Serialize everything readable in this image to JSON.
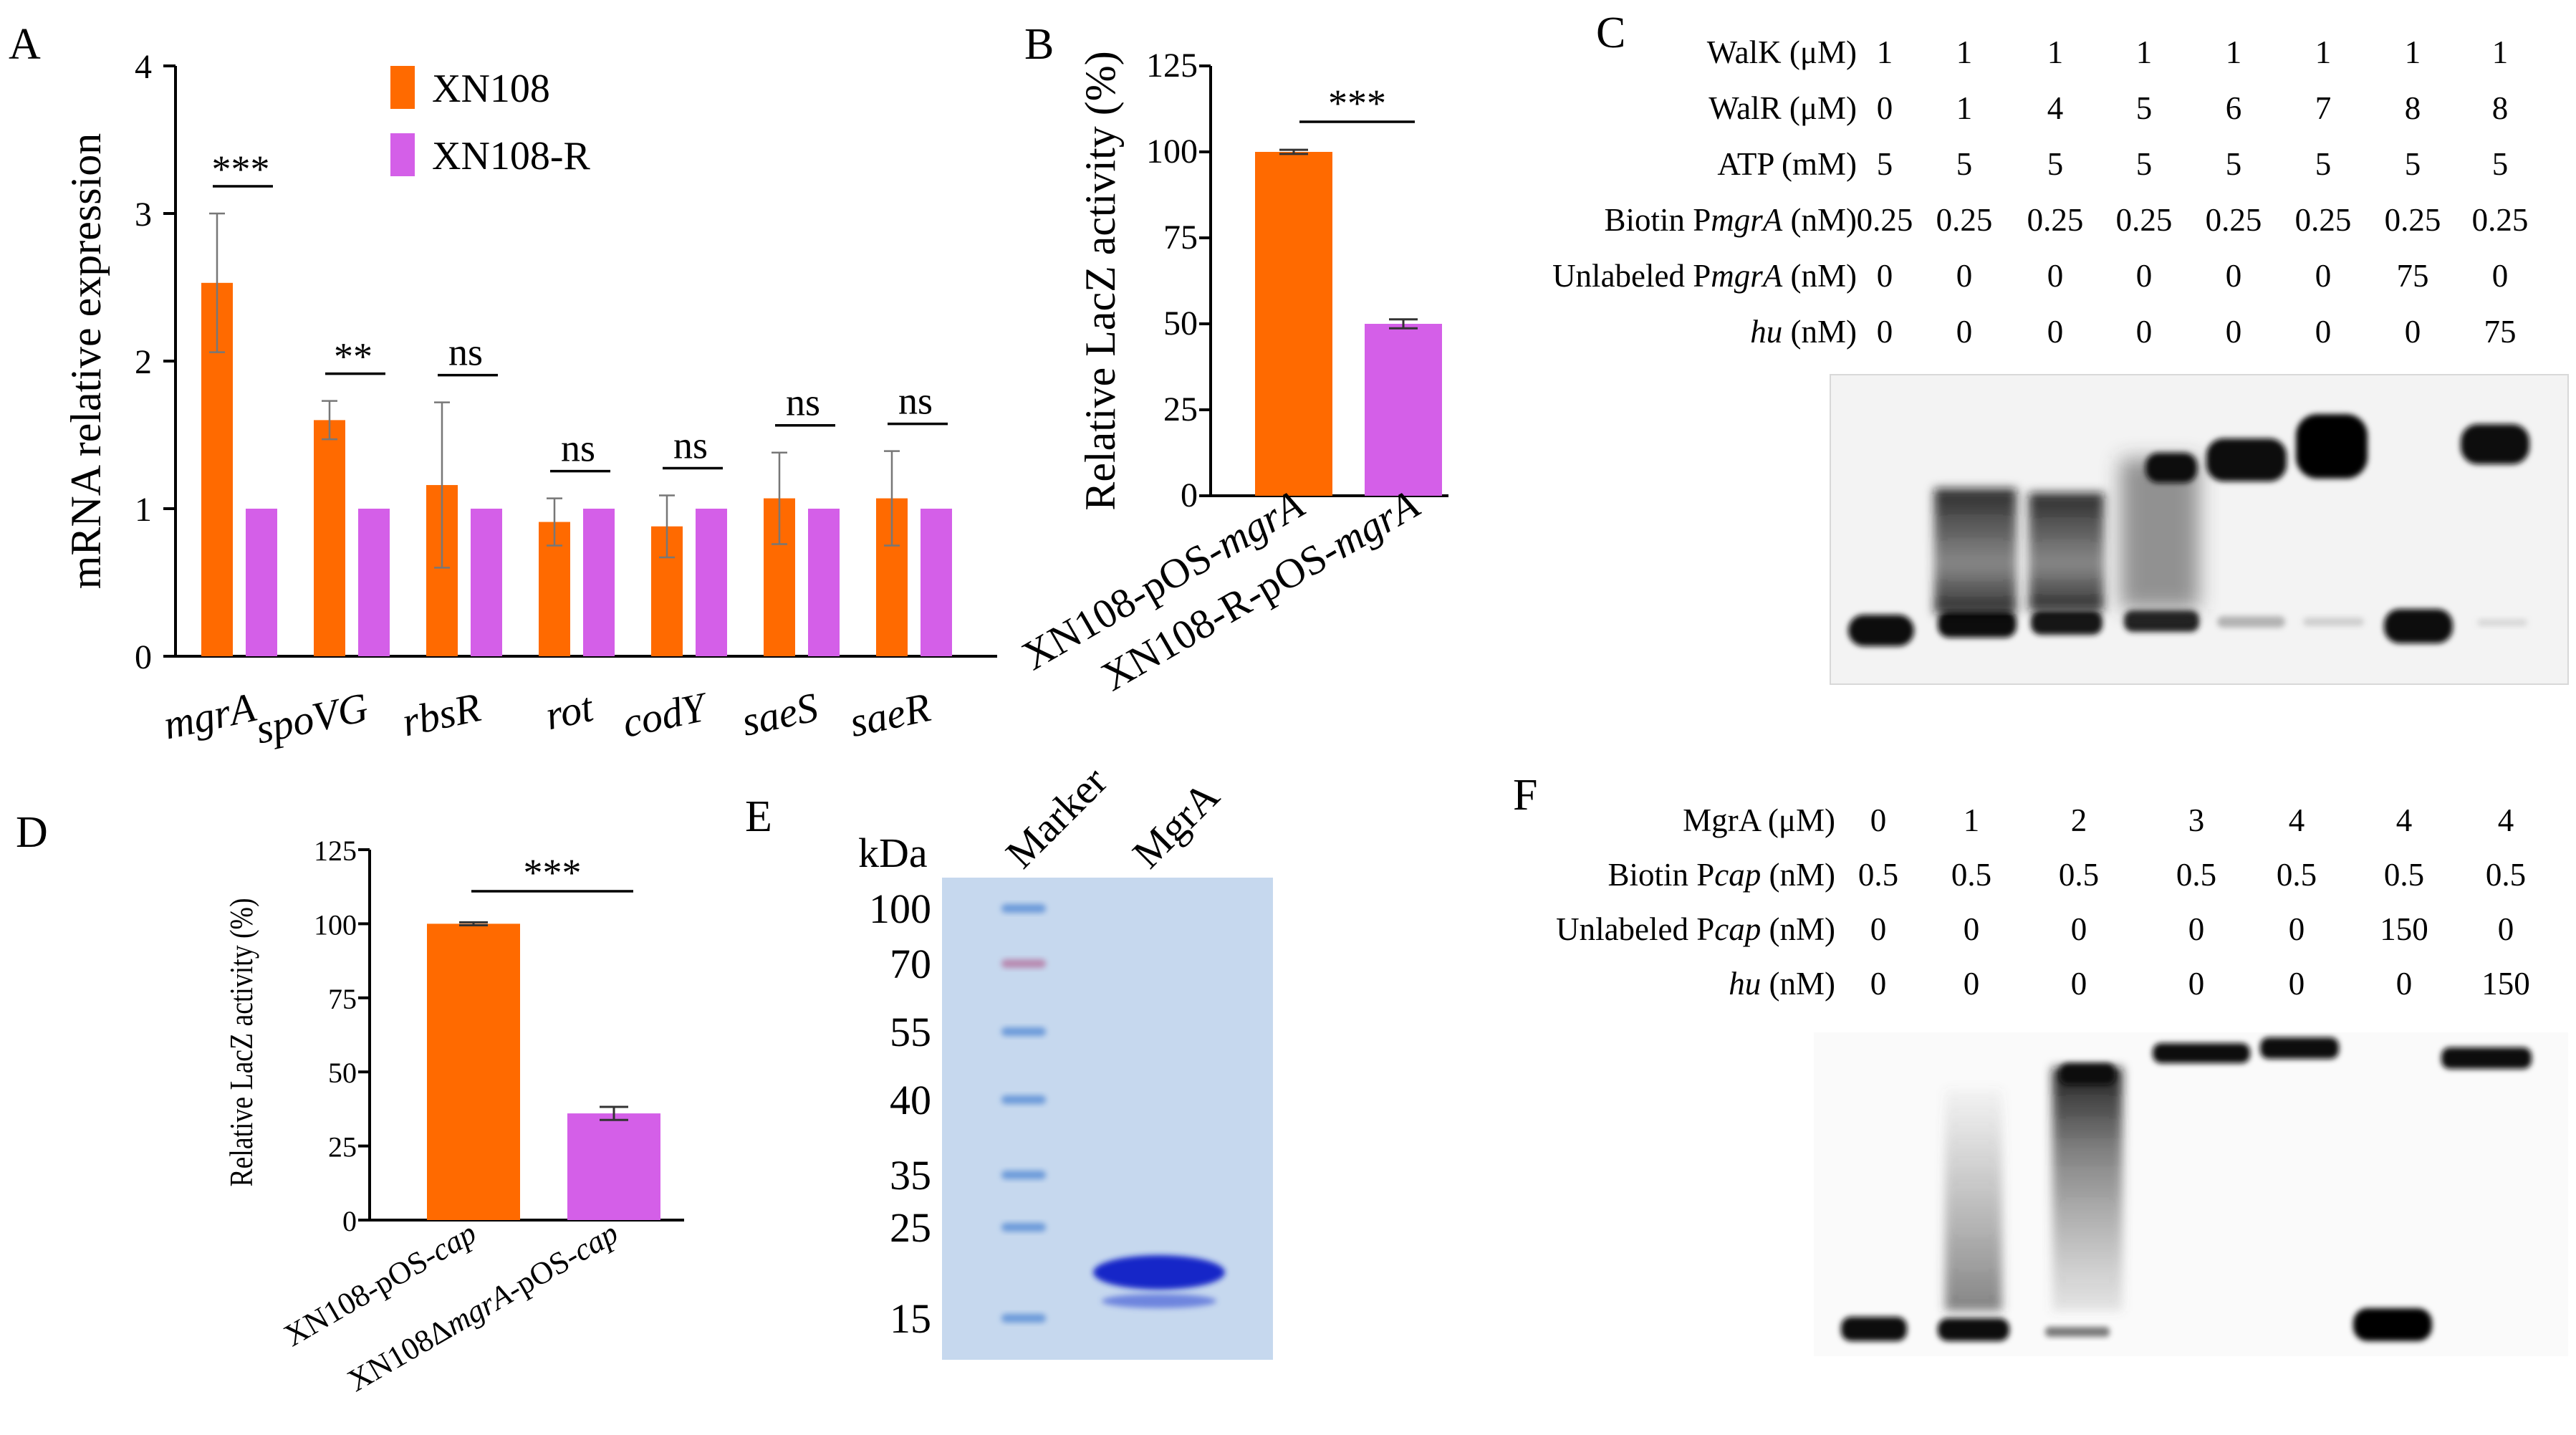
{
  "colors": {
    "xn108": "#ff6a00",
    "xn108r": "#d45fe8"
  },
  "panel_labels": [
    "A",
    "B",
    "C",
    "D",
    "E",
    "F"
  ],
  "chart_data": [
    {
      "panel": "A",
      "type": "bar",
      "ylabel": "mRNA relative expression",
      "ylim": [
        0,
        4
      ],
      "yticks": [
        "0",
        "1",
        "2",
        "3",
        "4"
      ],
      "categories": [
        "mgrA",
        "spoVG",
        "rbsR",
        "rot",
        "codY",
        "saeS",
        "saeR"
      ],
      "series": [
        {
          "name": "XN108",
          "values": [
            2.53,
            1.6,
            1.16,
            0.91,
            0.88,
            1.07,
            1.07
          ],
          "errors": [
            0.47,
            0.13,
            0.56,
            0.16,
            0.21,
            0.31,
            0.32
          ]
        },
        {
          "name": "XN108-R",
          "values": [
            1,
            1,
            1,
            1,
            1,
            1,
            1
          ]
        }
      ],
      "significance": [
        "***",
        "**",
        "ns",
        "ns",
        "ns",
        "ns",
        "ns"
      ],
      "legend": "top-center",
      "grid": false
    },
    {
      "panel": "B",
      "type": "bar",
      "ylabel": "Relative LacZ activity (%)",
      "ylim": [
        0,
        125
      ],
      "yticks": [
        "0",
        "25",
        "50",
        "75",
        "100",
        "125"
      ],
      "categories": [
        "XN108-pOS-mgrA",
        "XN108-R-pOS-mgrA"
      ],
      "values": [
        100,
        50
      ],
      "errors": [
        0.6,
        1.3
      ],
      "significance": "***"
    },
    {
      "panel": "D",
      "type": "bar",
      "ylabel": "Relative LacZ activity (%)",
      "ylim": [
        0,
        125
      ],
      "yticks": [
        "0",
        "25",
        "50",
        "75",
        "100",
        "125"
      ],
      "categories": [
        "XN108-pOS-cap",
        "XN108ΔmgrA-pOS-cap"
      ],
      "values": [
        100,
        36
      ],
      "errors": [
        0.5,
        2.2
      ],
      "significance": "***"
    }
  ],
  "panel_c": {
    "rows": [
      {
        "pre": "WalK  (μM)",
        "it": "",
        "post": "",
        "values": [
          "1",
          "1",
          "1",
          "1",
          "1",
          "1",
          "1",
          "1"
        ]
      },
      {
        "pre": "WalR (μM)",
        "it": "",
        "post": "",
        "values": [
          "0",
          "1",
          "4",
          "5",
          "6",
          "7",
          "8",
          "8"
        ]
      },
      {
        "pre": "ATP (mM)",
        "it": "",
        "post": "",
        "values": [
          "5",
          "5",
          "5",
          "5",
          "5",
          "5",
          "5",
          "5"
        ]
      },
      {
        "pre": "Biotin P",
        "it": "mgrA",
        "post": " (nM)",
        "values": [
          "0.25",
          "0.25",
          "0.25",
          "0.25",
          "0.25",
          "0.25",
          "0.25",
          "0.25"
        ]
      },
      {
        "pre": "Unlabeled P",
        "it": "mgrA",
        "post": " (nM)",
        "values": [
          "0",
          "0",
          "0",
          "0",
          "0",
          "0",
          "75",
          "0"
        ]
      },
      {
        "pre": "",
        "it": "hu",
        "post": " (nM)",
        "values": [
          "0",
          "0",
          "0",
          "0",
          "0",
          "0",
          "0",
          "75"
        ]
      }
    ]
  },
  "panel_e": {
    "kda_label": "kDa",
    "lanes": [
      "Marker",
      "MgrA"
    ],
    "markers": [
      "100",
      "70",
      "55",
      "40",
      "35",
      "25",
      "15"
    ]
  },
  "panel_f": {
    "rows": [
      {
        "pre": "MgrA (μM)",
        "it": "",
        "post": "",
        "values": [
          "0",
          "1",
          "2",
          "3",
          "4",
          "4",
          "4"
        ]
      },
      {
        "pre": "Biotin P",
        "it": "cap",
        "post": " (nM)",
        "values": [
          "0.5",
          "0.5",
          "0.5",
          "0.5",
          "0.5",
          "0.5",
          "0.5"
        ]
      },
      {
        "pre": "Unlabeled P",
        "it": "cap",
        "post": " (nM)",
        "values": [
          "0",
          "0",
          "0",
          "0",
          "0",
          "150",
          "0"
        ]
      },
      {
        "pre": "",
        "it": "hu",
        "post": " (nM)",
        "values": [
          "0",
          "0",
          "0",
          "0",
          "0",
          "0",
          "150"
        ]
      }
    ]
  }
}
